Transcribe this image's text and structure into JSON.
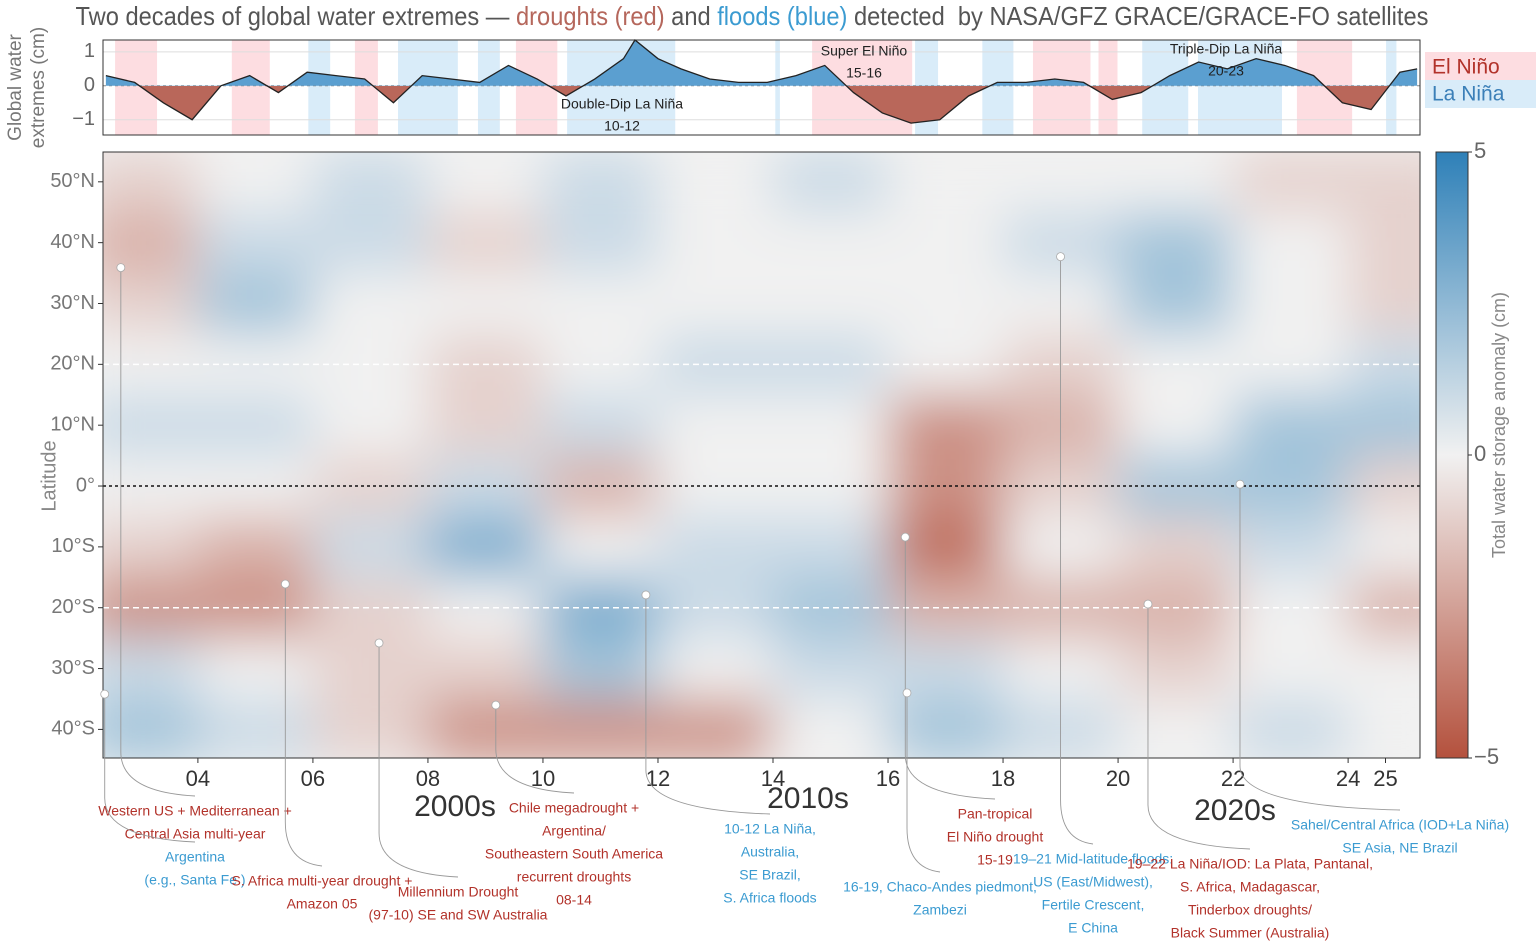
{
  "chart_data": [
    {
      "type": "line",
      "title_parts": [
        "Two decades of global water extremes — ",
        "droughts (red)",
        " and ",
        "floods (blue)",
        " detected  by NASA/GFZ GRACE/GRACE-FO satellites"
      ],
      "title_part_colors": [
        "#555555",
        "#b5675c",
        "#555555",
        "#3b9bd1",
        "#555555"
      ],
      "ylabel_lines": [
        "Global water",
        "extremes (cm)"
      ],
      "x": [
        2002.4,
        2002.9,
        2003.4,
        2003.9,
        2004.4,
        2004.9,
        2005.4,
        2005.9,
        2006.4,
        2006.9,
        2007.4,
        2007.9,
        2008.4,
        2008.9,
        2009.4,
        2009.9,
        2010.4,
        2010.9,
        2011.4,
        2011.6,
        2012.0,
        2012.4,
        2012.9,
        2013.4,
        2013.9,
        2014.4,
        2014.9,
        2015.4,
        2015.9,
        2016.4,
        2016.9,
        2017.4,
        2017.9,
        2018.4,
        2018.9,
        2019.4,
        2019.9,
        2020.4,
        2020.9,
        2021.4,
        2021.9,
        2022.4,
        2022.9,
        2023.4,
        2023.9,
        2024.4,
        2024.9,
        2025.2
      ],
      "values": [
        0.3,
        0.1,
        -0.5,
        -1.0,
        0.0,
        0.3,
        -0.2,
        0.4,
        0.3,
        0.2,
        -0.5,
        0.3,
        0.2,
        0.1,
        0.6,
        0.2,
        -0.3,
        0.2,
        0.8,
        1.35,
        0.8,
        0.5,
        0.2,
        0.1,
        0.1,
        0.3,
        0.6,
        -0.2,
        -0.8,
        -1.1,
        -1.0,
        -0.3,
        0.1,
        0.1,
        0.2,
        0.1,
        -0.4,
        -0.2,
        0.3,
        0.7,
        0.5,
        0.8,
        0.6,
        0.3,
        -0.5,
        -0.7,
        0.4,
        0.5
      ],
      "positive_color": "#5b9fd0",
      "negative_color": "#b9675a",
      "line_color": "#222222",
      "xlim": [
        2002.35,
        2025.25
      ],
      "ylim": [
        -1.45,
        1.35
      ],
      "yticks": [
        {
          "value": -1,
          "label": "−1"
        },
        0,
        1
      ],
      "el_nino_label": "El Niño",
      "la_nina_label": "La Niña",
      "el_nino_color": "#fddde1",
      "la_nina_color": "#d9ecf9",
      "el_nino_periods": [
        [
          2002.56,
          2003.29
        ],
        [
          2004.59,
          2005.25
        ],
        [
          2006.73,
          2007.13
        ],
        [
          2009.53,
          2010.25
        ],
        [
          2014.68,
          2016.42
        ],
        [
          2018.52,
          2019.52
        ],
        [
          2019.66,
          2019.99
        ],
        [
          2023.11,
          2024.07
        ]
      ],
      "la_nina_periods": [
        [
          2005.92,
          2006.3
        ],
        [
          2007.48,
          2008.52
        ],
        [
          2008.87,
          2009.25
        ],
        [
          2010.42,
          2012.3
        ],
        [
          2014.04,
          2014.12
        ],
        [
          2016.47,
          2016.87
        ],
        [
          2017.64,
          2018.18
        ],
        [
          2020.42,
          2021.22
        ],
        [
          2021.39,
          2022.85
        ],
        [
          2024.66,
          2024.84
        ]
      ],
      "annotations": [
        [
          "Super El Niño",
          "15-16"
        ],
        [
          "Double-Dip La Niña",
          "10-12"
        ],
        [
          "Triple-Dip La Niña",
          "20-23"
        ]
      ]
    },
    {
      "type": "heatmap",
      "ylabel": "Latitude",
      "x": [
        2003,
        2005,
        2007,
        2009,
        2011,
        2013,
        2015,
        2017,
        2019,
        2021,
        2023,
        2025
      ],
      "y": [
        50,
        40,
        30,
        20,
        10,
        0,
        -10,
        -20,
        -30,
        -40
      ],
      "z": [
        [
          -1,
          0,
          1,
          0,
          1,
          0,
          1,
          0,
          0,
          0,
          -1,
          -1
        ],
        [
          -2,
          1,
          1,
          -1,
          1,
          0,
          0,
          0,
          1,
          2,
          0,
          -1
        ],
        [
          -1,
          2,
          0,
          0,
          0,
          0,
          0,
          0,
          0,
          2,
          0,
          -1
        ],
        [
          0,
          0,
          0,
          -1,
          0,
          1,
          1,
          0,
          -1,
          0,
          0,
          1
        ],
        [
          1,
          1,
          0,
          -1,
          1,
          0,
          0,
          -3,
          -2,
          0,
          2,
          2
        ],
        [
          0,
          0,
          -1,
          1,
          -2,
          0,
          0,
          -3,
          -1,
          2,
          2,
          -1
        ],
        [
          -1,
          -2,
          1,
          3,
          0,
          1,
          1,
          -4,
          0,
          -1,
          1,
          0
        ],
        [
          -3,
          -3,
          -1,
          0,
          3,
          1,
          2,
          -2,
          -2,
          -2,
          0,
          -2
        ],
        [
          1,
          0,
          -1,
          -1,
          2,
          0,
          1,
          1,
          0,
          -1,
          0,
          0
        ],
        [
          2,
          1,
          -1,
          -3,
          -3,
          -3,
          0,
          2,
          1,
          0,
          1,
          0
        ]
      ],
      "xlim": [
        2002.35,
        2025.25
      ],
      "ylim": [
        -44.7,
        54.9
      ],
      "xticks": [
        {
          "value": 2004,
          "label": "04"
        },
        {
          "value": 2006,
          "label": "06"
        },
        {
          "value": 2008,
          "label": "08"
        },
        {
          "value": 2010,
          "label": "10"
        },
        {
          "value": 2012,
          "label": "12"
        },
        {
          "value": 2014,
          "label": "14"
        },
        {
          "value": 2016,
          "label": "16"
        },
        {
          "value": 2018,
          "label": "18"
        },
        {
          "value": 2020,
          "label": "20"
        },
        {
          "value": 2022,
          "label": "22"
        },
        {
          "value": 2024,
          "label": "24"
        },
        {
          "value": 2024.65,
          "label": "25"
        }
      ],
      "yticks": [
        {
          "value": 50,
          "label": "50°N"
        },
        {
          "value": 40,
          "label": "40°N"
        },
        {
          "value": 30,
          "label": "30°N"
        },
        {
          "value": 20,
          "label": "20°N"
        },
        {
          "value": 10,
          "label": "10°N"
        },
        {
          "value": 0,
          "label": "0°"
        },
        {
          "value": -10,
          "label": "10°S"
        },
        {
          "value": -20,
          "label": "20°S"
        },
        {
          "value": -30,
          "label": "30°S"
        },
        {
          "value": -40,
          "label": "40°S"
        }
      ],
      "tropic_lines": [
        20,
        -20
      ],
      "equator_line": 0,
      "colorbar": {
        "label": "Total water storage anomaly (cm)",
        "zlim": [
          -5,
          5
        ],
        "ticks": [
          5,
          0,
          {
            "value": -5,
            "label": "−5"
          }
        ],
        "colors": {
          "negative": "#b4513d",
          "neutral": "#f1f1f1",
          "positive": "#2e80b8"
        }
      },
      "decade_labels": [
        "2000s",
        "2010s",
        "2020s"
      ],
      "annotations": [
        {
          "lines": [
            "Western US + Mediterranean +",
            "Central Asia multi-year"
          ],
          "color": "#b2322a",
          "point": [
            2002.66,
            35.9
          ]
        },
        {
          "lines": [
            "Argentina",
            "(e.g., Santa Fe )"
          ],
          "color": "#3b9bd1",
          "point": [
            2002.38,
            -34.2
          ]
        },
        {
          "lines": [
            "S. Africa multi-year drought +",
            "Amazon 05"
          ],
          "color": "#b2322a",
          "point": [
            2005.52,
            -16.1
          ]
        },
        {
          "lines": [
            "Millennium Drought",
            "(97-10)  SE and SW Australia"
          ],
          "color": "#b2322a",
          "point": [
            2007.15,
            -25.8
          ]
        },
        {
          "lines": [
            "Chile megadrought +",
            "Argentina/",
            "Southeastern South America",
            "recurrent droughts",
            "08-14"
          ],
          "color": "#b2322a",
          "point": [
            2009.18,
            -36.0
          ]
        },
        {
          "lines": [
            "10-12 La Niña,",
            "Australia,",
            "SE Brazil,",
            "S. Africa floods"
          ],
          "color": "#3b9bd1",
          "point": [
            2011.79,
            -17.9
          ]
        },
        {
          "lines": [
            "Pan-tropical",
            "El Niño drought",
            "15-19"
          ],
          "color": "#b2322a",
          "point": [
            2016.3,
            -8.4
          ]
        },
        {
          "lines": [
            "16-19, Chaco-Andes piedmont,",
            "Zambezi"
          ],
          "color": "#3b9bd1",
          "point": [
            2016.33,
            -34.0
          ]
        },
        {
          "lines": [
            "19–21 Mid-latitude floods:",
            "US (East/Midwest),",
            "Fertile Crescent,",
            "E China"
          ],
          "color": "#3b9bd1",
          "point": [
            2019.0,
            37.7
          ]
        },
        {
          "lines": [
            "19–22 La Niña/IOD: La Plata, Pantanal,",
            "S. Africa, Madagascar,",
            "Tinderbox droughts/",
            "Black Summer (Australia)"
          ],
          "color": "#b2322a",
          "point": [
            2020.52,
            -19.4
          ]
        },
        {
          "lines": [
            "Sahel/Central Africa (IOD+La Niña)",
            "SE Asia, NE Brazil"
          ],
          "color": "#3b9bd1",
          "point": [
            2022.12,
            0.3
          ]
        }
      ]
    }
  ]
}
